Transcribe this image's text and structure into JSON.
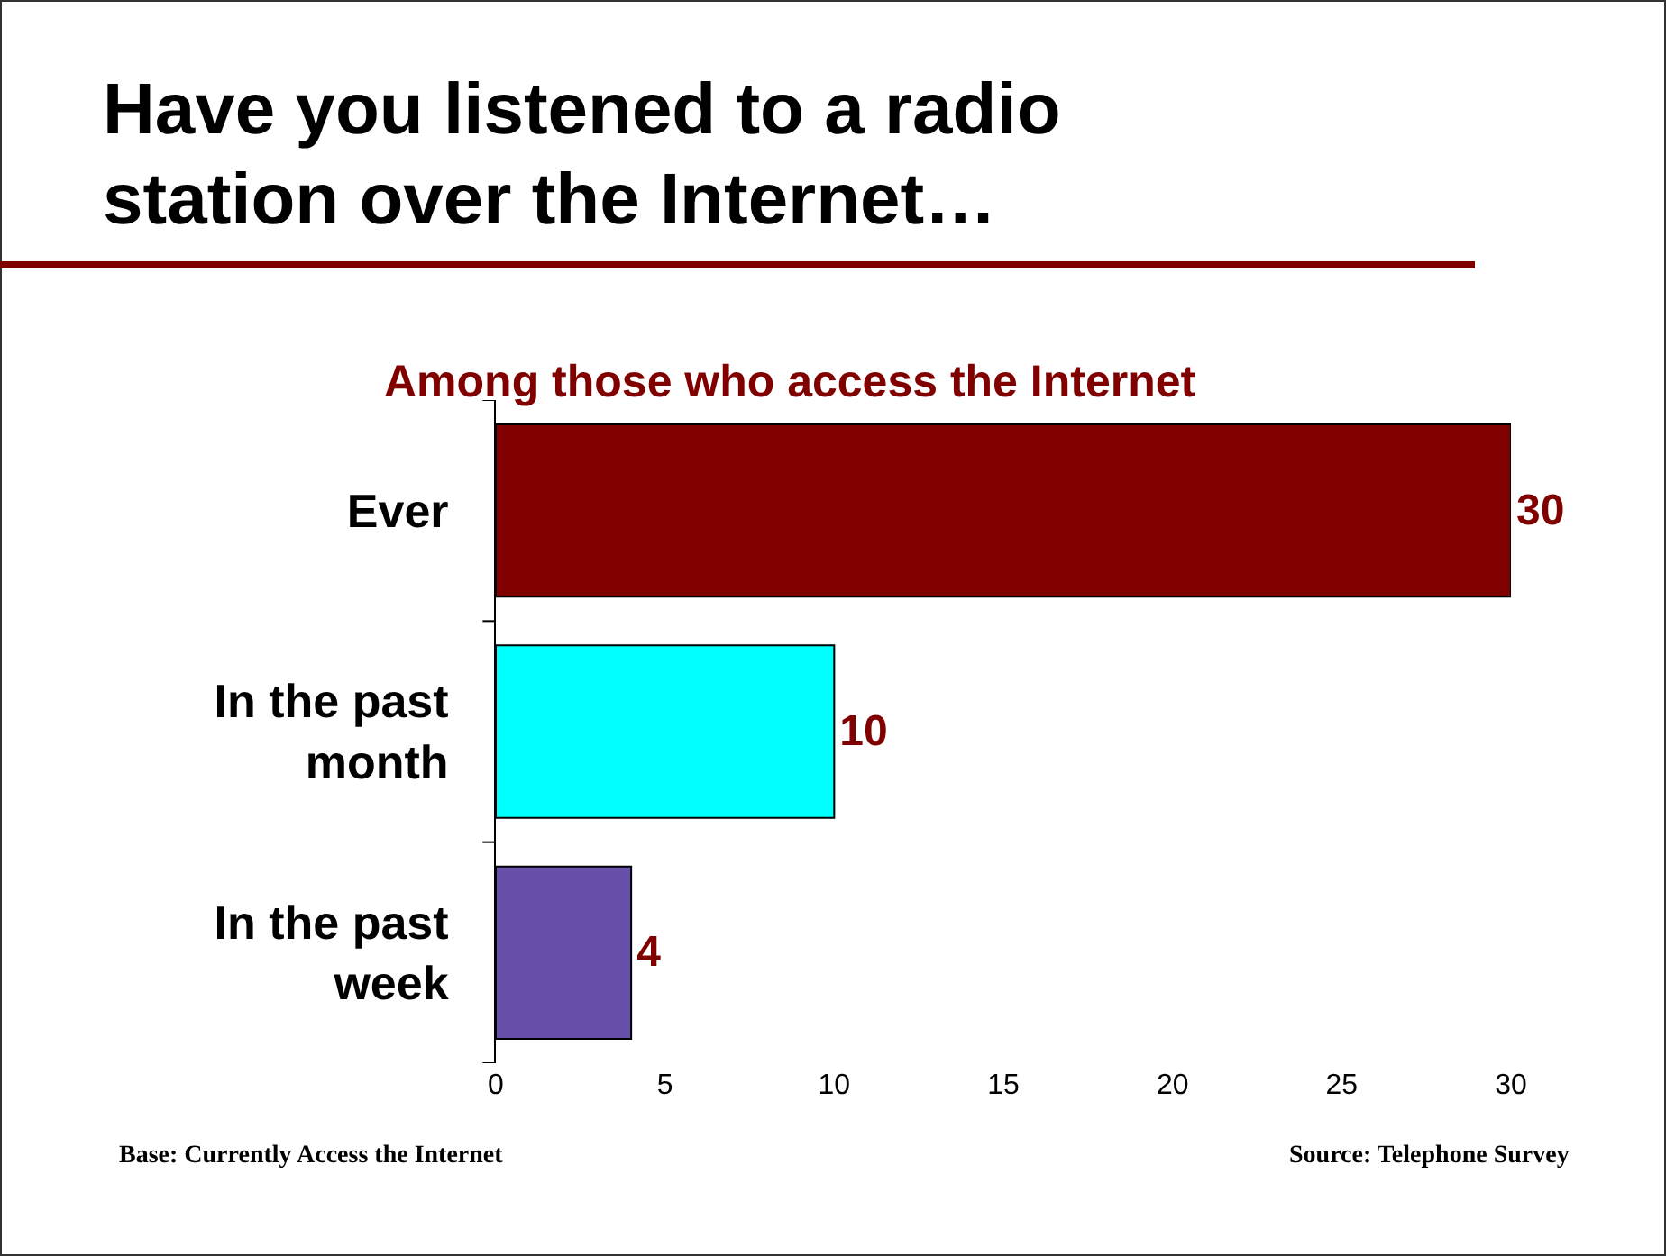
{
  "chart_data": {
    "type": "bar",
    "orientation": "horizontal",
    "title": "Have you listened to a radio station over the Internet…",
    "subtitle": "Among those who access the Internet",
    "categories": [
      "Ever",
      "In the past month",
      "In the past week"
    ],
    "values": [
      30,
      10,
      4
    ],
    "colors": [
      "#800000",
      "#00ffff",
      "#6650aa"
    ],
    "xlim": [
      0,
      30
    ],
    "xticks": [
      0,
      5,
      10,
      15,
      20,
      25,
      30
    ],
    "grid": false,
    "legend": false,
    "data_labels": true,
    "annotations": [
      "Base: Currently Access the Internet",
      "Source: Telephone Survey"
    ]
  }
}
